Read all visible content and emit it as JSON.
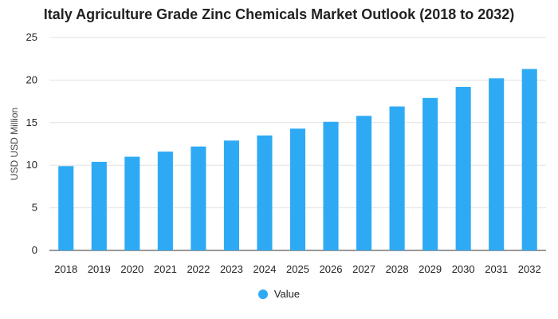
{
  "chart_data": {
    "type": "bar",
    "title": "Italy Agriculture Grade Zinc Chemicals Market Outlook (2018 to 2032)",
    "xlabel": "",
    "ylabel": "USD USD Million",
    "ylim": [
      0,
      25
    ],
    "yticks": [
      0,
      5,
      10,
      15,
      20,
      25
    ],
    "grid": true,
    "legend_position": "bottom",
    "categories": [
      "2018",
      "2019",
      "2020",
      "2021",
      "2022",
      "2023",
      "2024",
      "2025",
      "2026",
      "2027",
      "2028",
      "2029",
      "2030",
      "2031",
      "2032"
    ],
    "series": [
      {
        "name": "Value",
        "color": "#2eaaf5",
        "values": [
          9.9,
          10.4,
          11.0,
          11.6,
          12.2,
          12.9,
          13.5,
          14.3,
          15.1,
          15.8,
          16.9,
          17.9,
          19.2,
          20.2,
          21.3
        ]
      }
    ]
  }
}
